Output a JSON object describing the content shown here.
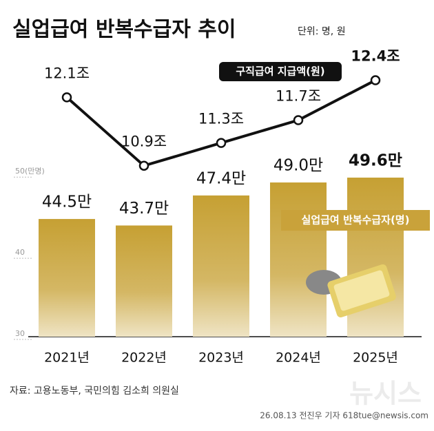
{
  "chart_data": {
    "type": "bar",
    "title": "실업급여 반복수급자 추이",
    "unit": "단위: 명, 원",
    "categories": [
      "2021년",
      "2022년",
      "2023년",
      "2024년",
      "2025년"
    ],
    "series": [
      {
        "name": "실업급여 반복수급자(명)",
        "type": "bar",
        "color": "#c9a23a",
        "values": [
          44.5,
          43.7,
          47.4,
          49.0,
          49.6
        ],
        "value_labels": [
          "44.5만",
          "43.7만",
          "47.4만",
          "49.0만",
          "49.6만"
        ]
      },
      {
        "name": "구직급여 지급액(원)",
        "type": "line",
        "axis": "y2",
        "color": "#111111",
        "values": [
          12.1,
          10.9,
          11.3,
          11.7,
          12.4
        ],
        "value_labels": [
          "12.1조",
          "10.9조",
          "11.3조",
          "11.7조",
          "12.4조"
        ]
      }
    ],
    "ylim": [
      30,
      63
    ],
    "yticks": [
      30,
      40,
      {
        "value": 50,
        "label": "50(만명)"
      }
    ],
    "y2lim": [
      7.9,
      12.6
    ],
    "source": "자료: 고용노동부, 국민의힘 김소희 의원실",
    "credit": "26.08.13 전진우 기자 618tue@newsis.com",
    "watermark": "뉴시스"
  }
}
